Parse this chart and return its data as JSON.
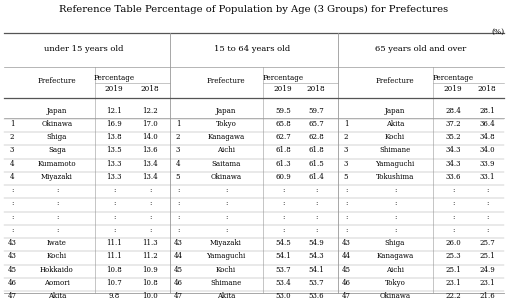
{
  "title": "Reference Table Percentage of Population by Age (3 Groups) for Prefectures",
  "unit": "(%)",
  "group_headers": [
    "under 15 years old",
    "15 to 64 years old",
    "65 years old and over"
  ],
  "group1": {
    "japan": [
      "Japan",
      12.1,
      12.2
    ],
    "rows": [
      [
        1,
        "Okinawa",
        16.9,
        17.0
      ],
      [
        2,
        "Shiga",
        13.8,
        14.0
      ],
      [
        3,
        "Saga",
        13.5,
        13.6
      ],
      [
        4,
        "Kumamoto",
        13.3,
        13.4
      ],
      [
        4,
        "Miyazaki",
        13.3,
        13.4
      ],
      [
        ":",
        ":",
        ":",
        ":"
      ],
      [
        ":",
        ":",
        ":",
        ":"
      ],
      [
        ":",
        ":",
        ":",
        ":"
      ],
      [
        ":",
        ":",
        ":",
        ":"
      ],
      [
        43,
        "Iwate",
        11.1,
        11.3
      ],
      [
        43,
        "Kochi",
        11.1,
        11.2
      ],
      [
        45,
        "Hokkaido",
        10.8,
        10.9
      ],
      [
        46,
        "Aomori",
        10.7,
        10.8
      ],
      [
        47,
        "Akita",
        9.8,
        10.0
      ]
    ]
  },
  "group2": {
    "japan": [
      "Japan",
      59.5,
      59.7
    ],
    "rows": [
      [
        1,
        "Tokyo",
        65.8,
        65.7
      ],
      [
        2,
        "Kanagawa",
        62.7,
        62.8
      ],
      [
        3,
        "Aichi",
        61.8,
        61.8
      ],
      [
        4,
        "Saitama",
        61.3,
        61.5
      ],
      [
        5,
        "Okinawa",
        60.9,
        61.4
      ],
      [
        ":",
        ":",
        ":",
        ":"
      ],
      [
        ":",
        ":",
        ":",
        ":"
      ],
      [
        ":",
        ":",
        ":",
        ":"
      ],
      [
        ":",
        ":",
        ":",
        ":"
      ],
      [
        43,
        "Miyazaki",
        54.5,
        54.9
      ],
      [
        44,
        "Yamaguchi",
        54.1,
        54.3
      ],
      [
        45,
        "Kochi",
        53.7,
        54.1
      ],
      [
        46,
        "Shimane",
        53.4,
        53.7
      ],
      [
        47,
        "Akita",
        53.0,
        53.6
      ]
    ]
  },
  "group3": {
    "japan": [
      "Japan",
      28.4,
      28.1
    ],
    "rows": [
      [
        1,
        "Akita",
        37.2,
        36.4
      ],
      [
        2,
        "Kochi",
        35.2,
        34.8
      ],
      [
        3,
        "Shimane",
        34.3,
        34.0
      ],
      [
        3,
        "Yamaguchi",
        34.3,
        33.9
      ],
      [
        5,
        "Tokushima",
        33.6,
        33.1
      ],
      [
        ":",
        ":",
        ":",
        ":"
      ],
      [
        ":",
        ":",
        ":",
        ":"
      ],
      [
        ":",
        ":",
        ":",
        ":"
      ],
      [
        ":",
        ":",
        ":",
        ":"
      ],
      [
        43,
        "Shiga",
        26.0,
        25.7
      ],
      [
        44,
        "Kanagawa",
        25.3,
        25.1
      ],
      [
        45,
        "Aichi",
        25.1,
        24.9
      ],
      [
        46,
        "Tokyo",
        23.1,
        23.1
      ],
      [
        47,
        "Okinawa",
        22.2,
        21.6
      ]
    ]
  },
  "bg_color": "#ffffff",
  "line_color": "#999999",
  "header_line_color": "#555555"
}
